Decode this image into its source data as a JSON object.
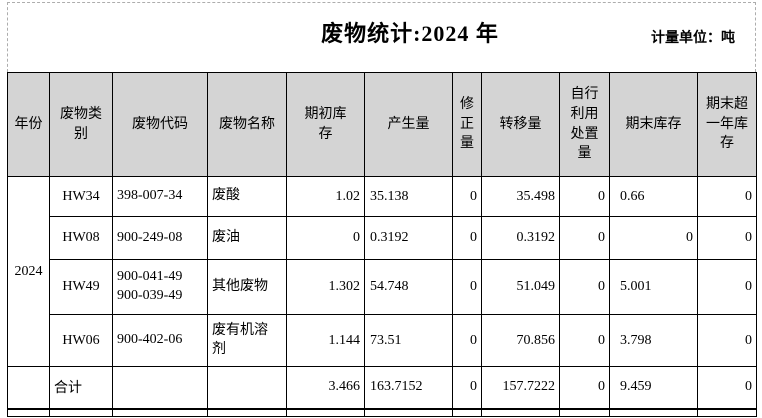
{
  "page": {
    "title": "废物统计:2024 年",
    "unit_label": "计量单位：吨"
  },
  "table": {
    "headers": [
      "年份",
      "废物类\n别",
      "废物代码",
      "废物名称",
      "期初库\n存",
      "产生量",
      "修\n正\n量",
      "转移量",
      "自行\n利用\n处置\n量",
      "期末库存",
      "期末超\n一年库\n存"
    ],
    "year": "2024",
    "rows": [
      {
        "category": "HW34",
        "code": "398-007-34",
        "name": "废酸",
        "opening": "1.02",
        "generated": "35.138",
        "corrected": "0",
        "transferred": "35.498",
        "self_disposed": "0",
        "closing": "0.66",
        "over_one_year": "0"
      },
      {
        "category": "HW08",
        "code": "900-249-08",
        "name": "废油",
        "opening": "0",
        "generated": "0.3192",
        "corrected": "0",
        "transferred": "0.3192",
        "self_disposed": "0",
        "closing": "0",
        "over_one_year": "0"
      },
      {
        "category": "HW49",
        "code": "900-041-49\n900-039-49",
        "name": "其他废物",
        "opening": "1.302",
        "generated": "54.748",
        "corrected": "0",
        "transferred": "51.049",
        "self_disposed": "0",
        "closing": "5.001",
        "over_one_year": "0"
      },
      {
        "category": "HW06",
        "code": "900-402-06",
        "name": "废有机溶\n剂",
        "opening": "1.144",
        "generated": "73.51",
        "corrected": "0",
        "transferred": "70.856",
        "self_disposed": "0",
        "closing": "3.798",
        "over_one_year": "0"
      }
    ],
    "total": {
      "label": "合计",
      "opening": "3.466",
      "generated": "163.7152",
      "corrected": "0",
      "transferred": "157.7222",
      "self_disposed": "0",
      "closing": "9.459",
      "over_one_year": "0"
    }
  },
  "colors": {
    "header_bg": "#d4d4d4",
    "border": "#000000",
    "page_break_dash": "#adadad"
  }
}
